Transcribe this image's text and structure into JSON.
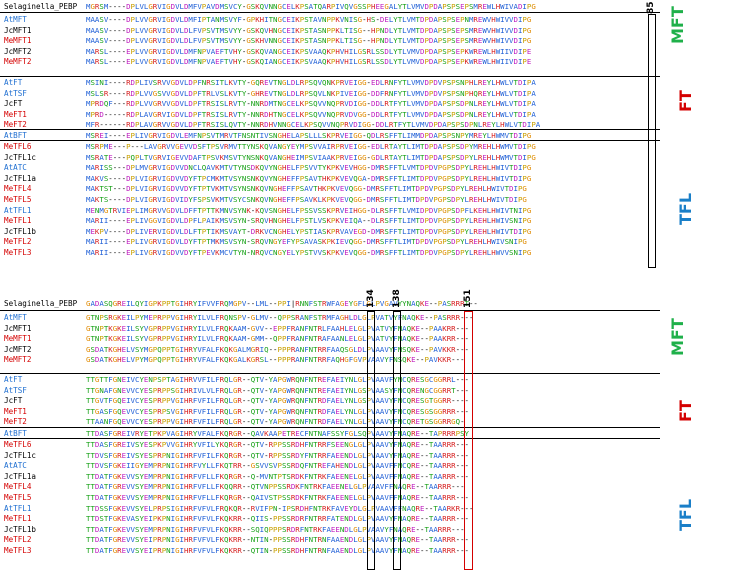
{
  "panels": [
    {
      "rows": [
        {
          "name": "Selaginella_PEBP",
          "seq": "MGRSM----DPLVLGRVIGDVLDMFVPAVDMSVCY-GSKQVNNGCELKPSATQARPIVQVGSSPHEEGALYTLVMVDPDAPSPSEPSMREWLHWIVADIPG"
        },
        {
          "name": "AtMFT",
          "seq": "MAASV----DPLVVGRVIGDVLDMFIPTANMSVYF-GPKHITNGCEIKPSTAVNPPKVNISG-HS-DELYTLVMTDPDAPSPSEPNMREWVHWIVVDIPG"
        },
        {
          "name": "JcMFT1",
          "seq": "MAASV----DPLVVGRVIGDVLDLFVPSVTMSVYY-GSKQVHNGCEIKPSTASNPPKLTISG--HPNDLYTLVMTDPDAPSPSEPSMREWVHWIVVDIPG"
        },
        {
          "name": "MeMFT1",
          "seq": "MAASV----DPLVVGRVIGDVLDLFVPSVTMSVYY-GSKHVNNGCEIKPSTASNPPKLTISG--HPNDLYTLVMTDPDAPSPSEPSMREWVHWIVVDIPG"
        },
        {
          "name": "JcMFT2",
          "seq": "MARSL----EPLVVGRVIGDVLDMFNPVAEFTVHY-GSKQVANGCEIKPSVAAQKPHVHILGSRLSSDLYTLVMVDPDAPSPSEPKWREWLHWIIVDIPE"
        },
        {
          "name": "MeMFT2",
          "seq": "MARSL----EPLVVGRVIGDVLDMFNPVAEFTVHY-GSKQIANGCEIKPSVAAQKPHVHILGSRLSSDLYTLVMVDPDAPSPSEPKWREWLHWIIVDIPE"
        },
        {
          "name": "AtFT",
          "seq": "MSINI----RDPLIVSRVVGDVLDPFNRSITLKVTY-GQREVTNGLDLRPSQVQNKPRVEIGG-EDLRNFYTLVMVDPDVPSPSNPHLREYLHWLVTDIPA"
        },
        {
          "name": "AtTSF",
          "seq": "MSLSR----RDPLVVGSVVGDVLDPFTRLVSLKVTY-GHREVTNGLDLRPSQVLNKPIVEIGG-DDFRNFYTLVMVDPDVPSPSNPHQREYLHWLVTDIPA"
        },
        {
          "name": "JcFT",
          "seq": "MPRDQF---RDPLVVGRVVGDVLDPFTRSISLRVTY-NNRDMTNGCELKPSQVVNQPRVDIGG-DDLRTFYTLVMVDPDAPSPSDPNLREYLHWLVTDIPA"
        },
        {
          "name": "MeFT1",
          "seq": "MPRD-----RDPLAVGRVIGDVLDPFTRSISLRVTY-NNRDHTNGCELKPSQVVNQPRVDVGG-DDLRTFYTLVMVDPDAPSPSDPNLREYLHWLVTDIPA"
        },
        {
          "name": "MeFT2",
          "seq": "MFR------RDPLAVGRVVGDVLDPFTRSISLQVTY-NNRDHVNNGCELKPSQVVNQPRVDIGG-DDLRTFYTLVMVDPDAPSPSDPNLREYLHWLVTDIPA"
        },
        {
          "name": "AtBFT",
          "seq": "MSREI----EPLIVGRVIGDVLEMFNPSVTMRVTFNSNTIVSNGHELAPSLLLSKPRVEIGG-QDLRSFFTLIMMDPDAPSPSNPYMREYLHWMVTDIPG"
        },
        {
          "name": "MeTFL6",
          "seq": "MSRPME---P---LAVGRVVGEVVDSFTPSVRMVTTYNSKQVANGYEYMPSVVAIRPRVEIGG-EDLRTAYTLIMTDPDAPSPSDPYMREHLHWMVTDIPG"
        },
        {
          "name": "JcTFL1c",
          "seq": "MSRATE---PQPLTVGRVIGEVVDAFTPSVKMSVTYNSNKQVANGHEIMPSVIAAKPRVEIGG-GDLRTAYTLIMTDPDAPSPSDPYLREHLHWMVTDIPG"
        },
        {
          "name": "AtATC",
          "seq": "MARISS---DPLMVGRVIGDVVDNCLQAVKMTVTYNSDKQVYNGHELFPSVVTYKPKVEVHGG-DMRSFFTLVMTDPDVPGPSDPYLREHLHWIVTDIPG"
        },
        {
          "name": "JcTFL1a",
          "seq": "MAKVS----DPLVIGRVIGDVVDYFTPCMKMTVSYNSNKQVYNGHEFFPSAVTHKPKVEVQGA-DMRSFFTLIMTDPDVPGPSDPYLREHLHWIVTDIPG"
        },
        {
          "name": "MeTFL4",
          "seq": "MAKTST---DPLVIGRVIGDVVDYFTPTVKMTVSYNSNKQVNGHEFFPSAVTHKPKVEVQGG-DMRSFFTLIMTDPDVPGPSDPYLREHLHWIVTDIPG"
        },
        {
          "name": "MeTFL5",
          "seq": "MAKTS----DPLVIGRVIGDVIDYFSPSVKMTVSYCSNKQVNGHEFFPSAVKLKPKVEVQGG-DMRSFFTLIMTDPDVPGPSDPYLREHLHWIVTDIPG"
        },
        {
          "name": "AtTFL1",
          "seq": "MENMGTRVIEPLIMGRVVGDVLDFFTPTTKMNVSYNK-KQVSNGHELFPSSVSSKPRVEIHGG-DLRSFFTLVMIDPDVPGPSDPFLKEHLHWIVTNIPG"
        },
        {
          "name": "MeTFL1",
          "seq": "MARII----EPLIVGGVIGDVLDPFLPAIKMSVSYN-SRQVHNGHELFPSTLVSKPKVEIQA--DLRSFFTLIMTDPDVPGPSDPYLREHLHWIVSNIPG"
        },
        {
          "name": "JcTFL1b",
          "seq": "MEKPV----DPLIVERVIGDVLDLFTPTIKMSVAYT-DRKVCNGHELYPSTIASKPRVAVEGD-DMRSFFTLIMTDPDVPGPSDPYLREHLHWIVTDIPG"
        },
        {
          "name": "MeTFL2",
          "seq": "MARII----EPLIVGRVIGDVLDYFTPTMKMSVSYN-SRQVNGYEFYPSAVASKPKIEVQGG-DMRSFFTLIMTDPDVPGPSDPYLREHLHWIVSNIPG"
        },
        {
          "name": "MeTFL3",
          "seq": "MARII----EPLIVGRVIGDVVDYFTPEVKMCVTYN-NRQVCNGYELYPSTVVSKPKVEVQGG-DMRSFFTLIMTDPDVPGPSDPYLREHLHWVVSNIPG"
        }
      ]
    },
    {
      "rows": [
        {
          "name": "Selaginella_PEBP",
          "seq": "GADASQGREILQYIGPKPPTGIHRYIFVVFRQMGPV--LML--PPI|RNNFSTRWFAGEYGFLGLPVGAVYYNAQKE--PASRRRT--"
        },
        {
          "name": "AtMFT",
          "seq": "GTNPSRGKEILPYMEPRPPVGIHRYILVLFRQNSPV-GLMV--QPPSRANFSTRMFAGHLDLGLPVATVYFNAQKE--PASRRR---"
        },
        {
          "name": "JcMFT1",
          "seq": "GTNPTKGKEILSYVGPRPPVGIHRYILVLFRQKAAM-GVV--EPPFRANFNTRLFAAHLELGLPVATVYFNAQKE--PAAKRR---"
        },
        {
          "name": "MeMFT1",
          "seq": "GTNPTKGKEILSYVGPRPPVGIHRYILVLFRQKAAM-GMM--QPPFRANFNTRAFAANLELGLPVATVYFNAQKE--PAAKRR---"
        },
        {
          "name": "JcMFT2",
          "seq": "GSDATKGHELVSYMGPQPPTGIHRYVFALFKQKGALMGRIQ--PPPRANFNTRRFAAQSGLDLPVAAVYFNSQKE--PAVKKR---"
        },
        {
          "name": "MeMFT2",
          "seq": "GSDATKGHELVPYMGPQPPTGIHRYVFALFKQKGALKGRSL--PPPRANFNTRRFAQHGFGVPVAAVYFNSQKE--PAVKKR---"
        },
        {
          "name": "AtFT",
          "seq": "TTGTTFGNEIVCYENPSPTAGIHRVVFILFRQLGR--QTV-YAPGWRQNFNTREFAEIYNLGLPVAAVFYNCQRESGCGGRRL---"
        },
        {
          "name": "AtTSF",
          "seq": "TTGNAFGNEVVCYESPRPPSGIHRIVLVLFRQLGR--QTV-YAPGWRQNFNTREFAEIYNLGSPVAASYFNCQRENGCGGRRT---"
        },
        {
          "name": "JcFT",
          "seq": "TTGVTFGQEIVCYESPRPPVGIHRFVFILFRQLGR--QTV-YAPGWRQNFNTRDFAELYNLGSPVAAVYFNCQRESGTGGRR----"
        },
        {
          "name": "MeFT1",
          "seq": "TTGASFGQEVVCYESPRPSVGIHRFVFILFRQLGR--QTV-YAPGWRQNFNTRDFAELYNLGLPVAAVYFNCQRESGSGGRRR---"
        },
        {
          "name": "MeFT2",
          "seq": "TTAANFGQEVVCYESPRPPVGIHRFVFILFRQLGR--QTV-YAPGWRQNFNTRDFAELYNLGLPVAAVYFNCQRETGSGGRRGQ-"
        },
        {
          "name": "AtBFT",
          "seq": "TTDASFGREIVRYETPKPVAGIHRYVFALFKQRGR--QAVKAAPETRECFNTNAFSSYFGLSQPVAAVYFNAQRE--TAPRRRPSY"
        },
        {
          "name": "MeTFL6",
          "seq": "TTDASFGREIVSYESPKPVVGIHRYVFILYKQRGR--QTV-RPPSSRDHFNTRRFSEENGLGLPVAAVYFNAQRE--TAARRR---"
        },
        {
          "name": "JcTFL1c",
          "seq": "TTDVSFGREIVSYESPRPNIGIHRFVFILFKQRGR--QTV-RPPSSRDYFNTRRFAEENDLGLPVAAVYFNAQRE--TAARRR---"
        },
        {
          "name": "AtATC",
          "seq": "TTDVSFGKEIIGYEMPRPNIGIHRFVYLLFKQTRR--GSVVSVPSSRDQFNTREFAHENDLGLPVAAVFFNCQRE--TAARRR---"
        },
        {
          "name": "JcTFL1a",
          "seq": "TTDATFGKEVVSYEMPRPNIGIHRFVFLLFKQRGR--Q-MVNTPTSRDKFNTRKFAEENELGLPVAAVFFNAQRE--TAARRR---"
        },
        {
          "name": "MeTFL4",
          "seq": "TTDATFGREVVSYEMPRPNIGIHRFVFLLFKQQRR--QTVNPPSSRDKFNTRKFAEENELGLPVAAVFFNAQRE--TAARRR---"
        },
        {
          "name": "MeTFL5",
          "seq": "TTDATFGKEVVSYEMPRPNIGIHRFVFLLFKQRGR--QAIVSTPSSRDKFNTRKFAEENELGLPVAAVFFNAQRE--TAARRR---"
        },
        {
          "name": "AtTFL1",
          "seq": "TTDSSFGKEVVSYELPRPSIGIHRFVFVLFRQKQR--RVIFPN-IPSRDHFNTRKFAVEYDLGLPVAAVFFNAQRE--TAARKR---"
        },
        {
          "name": "MeTFL1",
          "seq": "TTDSTFGKEVASYEIPKPNIGIHRFVFVLFKQKRR--QIIS-PPSSRDRFNTRRFATENDLGLPVAAVYFNAQRE--TAARRR---"
        },
        {
          "name": "JcTFL1b",
          "seq": "TTDATFGKEVVSYEMPRPNIGIHRFVFVLFKQKRR--SQIQPPPSRDRFNTRKFAEENDLGLPVAAVYFNAQRE--TAARRR---"
        },
        {
          "name": "MeTFL2",
          "seq": "TTDATFGREVVSYEIPRPNIGIHRFVFVLFKQKRR--NTIN-PPSSRDHFNTRNFAAENDLGLPVAAVYFNAQRE--TAARRR---"
        },
        {
          "name": "MeTFL3",
          "seq": "TTDATFGREVVSYEIPRPNIGIHRFVFVLFKQKRR--QTIN-PPSSRDHFNTRNFAAENDLGLPVAAVYFNAQRE--TAARRR---"
        }
      ]
    }
  ],
  "name_colors": {
    "Selaginella_PEBP": "#000000",
    "AtMFT": "#1f6fd1",
    "JcMFT1": "#000000",
    "MeMFT1": "#d40000",
    "JcMFT2": "#000000",
    "MeMFT2": "#d40000",
    "AtFT": "#1f6fd1",
    "AtTSF": "#1f6fd1",
    "JcFT": "#000000",
    "MeFT1": "#d40000",
    "MeFT2": "#d40000",
    "AtBFT": "#1f6fd1",
    "MeTFL6": "#d40000",
    "JcTFL1c": "#000000",
    "AtATC": "#1f6fd1",
    "JcTFL1a": "#000000",
    "MeTFL4": "#d40000",
    "MeTFL5": "#d40000",
    "AtTFL1": "#1f6fd1",
    "MeTFL1": "#d40000",
    "JcTFL1b": "#000000",
    "MeTFL2": "#d40000",
    "MeTFL3": "#d40000"
  },
  "residue_colors": {
    "hydrophobic": "#1f5fd6",
    "positive": "#d62020",
    "negative": "#c020c0",
    "polar": "#15a015",
    "glycine": "#e08a00",
    "proline": "#c8a000",
    "gap": "#000000"
  },
  "groups": [
    {
      "label": "MFT",
      "color": "#1fb04a"
    },
    {
      "label": "FT",
      "color": "#d40000"
    },
    {
      "label": "TFL",
      "color": "#1a7fc8"
    }
  ],
  "positions": [
    "85",
    "134",
    "138",
    "151"
  ]
}
